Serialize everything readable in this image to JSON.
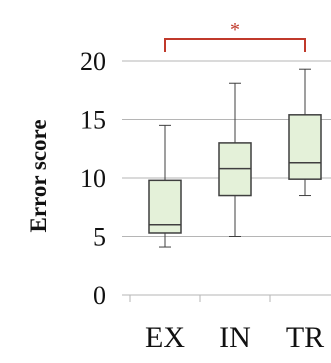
{
  "colors": {
    "box_fill": "#e4f1d9",
    "box_stroke": "#3f3f3f",
    "grid": "#b5b5b5",
    "significance": "#c0392b"
  },
  "chart_data": {
    "type": "boxplot",
    "title": "",
    "xlabel": "",
    "ylabel": "Error score",
    "ylim": [
      0,
      20
    ],
    "yticks": [
      0,
      5,
      10,
      15,
      20
    ],
    "grid": true,
    "categories": [
      "EX",
      "IN",
      "TR"
    ],
    "boxes": [
      {
        "category": "EX",
        "min": 4.1,
        "q1": 5.3,
        "median": 6.0,
        "q3": 9.8,
        "max": 14.5
      },
      {
        "category": "IN",
        "min": 5.0,
        "q1": 8.5,
        "median": 10.8,
        "q3": 13.0,
        "max": 18.1
      },
      {
        "category": "TR",
        "min": 8.5,
        "q1": 9.9,
        "median": 11.3,
        "q3": 15.4,
        "max": 19.3
      }
    ],
    "significance": [
      {
        "from": "EX",
        "to": "TR",
        "label": "*"
      }
    ]
  }
}
